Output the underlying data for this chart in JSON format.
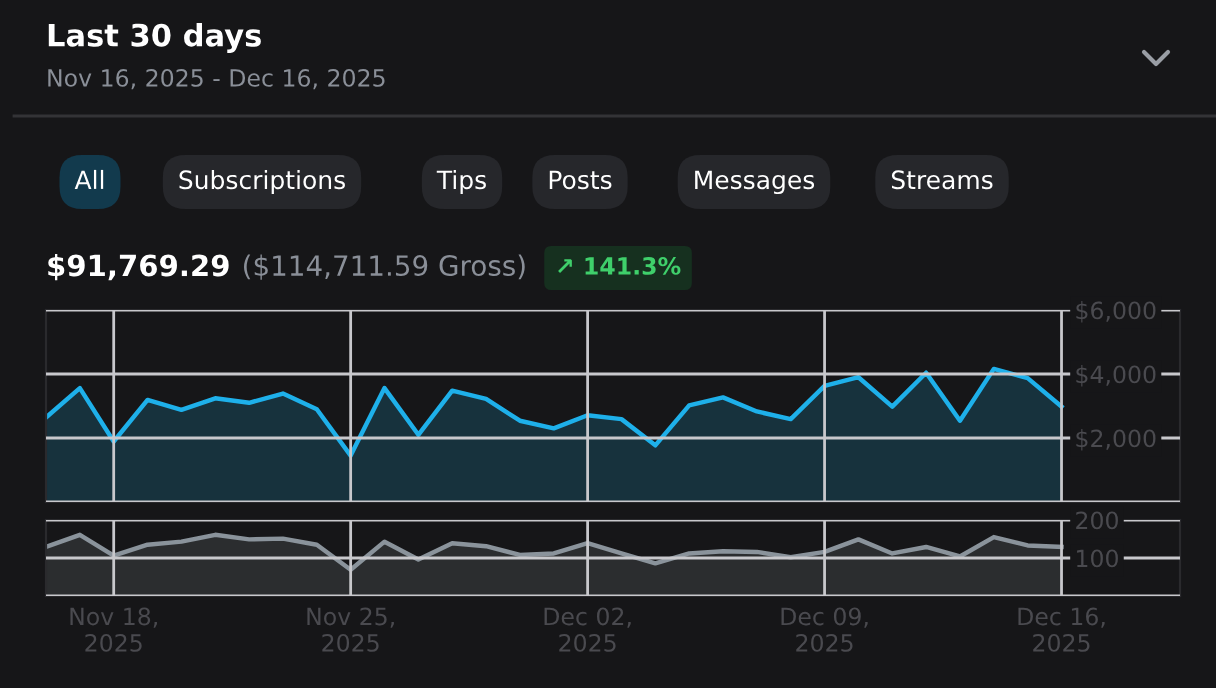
{
  "chart_data": [
    {
      "type": "area",
      "title": "Last 30 days",
      "subtitle": "Nov 16, 2025 - Dec 16, 2025",
      "annotations": [
        "All",
        "Subscriptions",
        "Tips",
        "Posts",
        "Messages",
        "Streams",
        "$91,769.29",
        "($114,711.59 Gross)",
        "↗ 141.3%"
      ],
      "x": [
        "2025-11-16",
        "2025-11-17",
        "2025-11-18",
        "2025-11-19",
        "2025-11-20",
        "2025-11-21",
        "2025-11-22",
        "2025-11-23",
        "2025-11-24",
        "2025-11-25",
        "2025-11-26",
        "2025-11-27",
        "2025-11-28",
        "2025-11-29",
        "2025-11-30",
        "2025-12-01",
        "2025-12-02",
        "2025-12-03",
        "2025-12-04",
        "2025-12-05",
        "2025-12-06",
        "2025-12-07",
        "2025-12-08",
        "2025-12-09",
        "2025-12-10",
        "2025-12-11",
        "2025-12-12",
        "2025-12-13",
        "2025-12-14",
        "2025-12-15",
        "2025-12-16"
      ],
      "series": [
        {
          "color": "#1eb0ea",
          "values": [
            2640,
            3560,
            1890,
            3190,
            2880,
            3240,
            3100,
            3390,
            2900,
            1450,
            3560,
            2100,
            3480,
            3220,
            2540,
            2300,
            2710,
            2590,
            1770,
            3020,
            3270,
            2830,
            2590,
            3630,
            3900,
            2980,
            4040,
            2540,
            4160,
            3870,
            2980
          ]
        }
      ],
      "xlim": [
        "2025-11-16",
        "2025-12-19T12:00"
      ],
      "xticks": [
        {
          "value": "2025-11-18",
          "label": null
        },
        {
          "value": "2025-11-25",
          "label": null
        },
        {
          "value": "2025-12-02",
          "label": null
        },
        {
          "value": "2025-12-09",
          "label": null
        },
        {
          "value": "2025-12-16",
          "label": null
        }
      ],
      "ylim": [
        0,
        6000
      ],
      "yticks": [
        {
          "value": 0,
          "label": null
        },
        {
          "value": 2000,
          "label": "$2,000"
        },
        {
          "value": 4000,
          "label": "$4,000"
        },
        {
          "value": 6000,
          "label": "$6,000"
        }
      ],
      "grid": true,
      "tick_labels": "y"
    },
    {
      "type": "area",
      "x": [
        "2025-11-16",
        "2025-11-17",
        "2025-11-18",
        "2025-11-19",
        "2025-11-20",
        "2025-11-21",
        "2025-11-22",
        "2025-11-23",
        "2025-11-24",
        "2025-11-25",
        "2025-11-26",
        "2025-11-27",
        "2025-11-28",
        "2025-11-29",
        "2025-11-30",
        "2025-12-01",
        "2025-12-02",
        "2025-12-03",
        "2025-12-04",
        "2025-12-05",
        "2025-12-06",
        "2025-12-07",
        "2025-12-08",
        "2025-12-09",
        "2025-12-10",
        "2025-12-11",
        "2025-12-12",
        "2025-12-13",
        "2025-12-14",
        "2025-12-15",
        "2025-12-16"
      ],
      "series": [
        {
          "color": "#8a939b",
          "values": [
            129,
            161,
            106,
            135,
            143,
            161,
            149,
            151,
            135,
            69,
            143,
            96,
            139,
            131,
            108,
            112,
            139,
            112,
            86,
            112,
            118,
            116,
            102,
            116,
            149,
            112,
            129,
            104,
            155,
            133,
            129
          ]
        }
      ],
      "xlim": [
        "2025-11-16",
        "2025-12-19T12:00"
      ],
      "xticks": [
        {
          "value": "2025-11-18",
          "label": "Nov 18,\n2025"
        },
        {
          "value": "2025-11-25",
          "label": "Nov 25,\n2025"
        },
        {
          "value": "2025-12-02",
          "label": "Dec 02,\n2025"
        },
        {
          "value": "2025-12-09",
          "label": "Dec 09,\n2025"
        },
        {
          "value": "2025-12-16",
          "label": "Dec 16,\n2025"
        }
      ],
      "ylim": [
        0,
        200
      ],
      "yticks": [
        {
          "value": 0,
          "label": null
        },
        {
          "value": 100,
          "label": "100"
        },
        {
          "value": 200,
          "label": "200"
        }
      ],
      "grid": true
    }
  ]
}
